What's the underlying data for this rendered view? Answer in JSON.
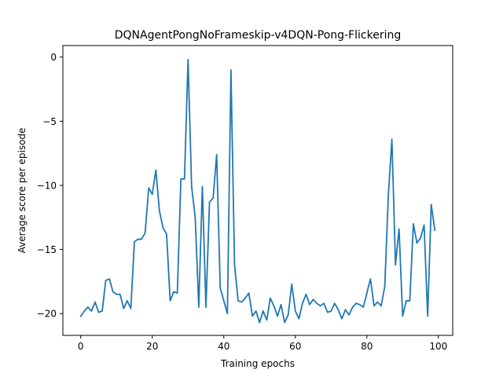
{
  "chart_data": {
    "type": "line",
    "title": "DQNAgentPongNoFrameskip-v4DQN-Pong-Flickering",
    "xlabel": "Training epochs",
    "ylabel": "Average score per episode",
    "xlim": [
      -5,
      104
    ],
    "ylim": [
      -21.7,
      0.9
    ],
    "xticks": [
      0,
      20,
      40,
      60,
      80,
      100
    ],
    "yticks": [
      0,
      -5,
      -10,
      -15,
      -20
    ],
    "xtick_labels": [
      "0",
      "20",
      "40",
      "60",
      "80",
      "100"
    ],
    "ytick_labels": [
      "0",
      "−5",
      "−10",
      "−15",
      "−20"
    ],
    "grid": false,
    "series": [
      {
        "color": "#1f77b4",
        "x": [
          0,
          1,
          2,
          3,
          4,
          5,
          6,
          7,
          8,
          9,
          10,
          11,
          12,
          13,
          14,
          15,
          16,
          17,
          18,
          19,
          20,
          21,
          22,
          23,
          24,
          25,
          26,
          27,
          28,
          29,
          30,
          31,
          32,
          33,
          34,
          35,
          36,
          37,
          38,
          39,
          40,
          41,
          42,
          43,
          44,
          45,
          46,
          47,
          48,
          49,
          50,
          51,
          52,
          53,
          54,
          55,
          56,
          57,
          58,
          59,
          60,
          61,
          62,
          63,
          64,
          65,
          66,
          67,
          68,
          69,
          70,
          71,
          72,
          73,
          74,
          75,
          76,
          77,
          78,
          79,
          80,
          81,
          82,
          83,
          84,
          85,
          86,
          87,
          88,
          89,
          90,
          91,
          92,
          93,
          94,
          95,
          96,
          97,
          98,
          99
        ],
        "y": [
          -20.2,
          -19.8,
          -19.5,
          -19.8,
          -19.1,
          -19.9,
          -19.8,
          -17.4,
          -17.3,
          -18.3,
          -18.5,
          -18.5,
          -19.6,
          -19.0,
          -19.6,
          -14.4,
          -14.2,
          -14.2,
          -13.7,
          -10.2,
          -10.7,
          -8.8,
          -12.0,
          -13.3,
          -13.8,
          -19.0,
          -18.3,
          -18.4,
          -9.5,
          -9.5,
          -0.2,
          -10.1,
          -12.5,
          -19.5,
          -10.1,
          -19.5,
          -11.3,
          -11.0,
          -7.6,
          -18.0,
          -19.0,
          -20.0,
          -1.0,
          -16.2,
          -19.0,
          -19.1,
          -18.8,
          -18.4,
          -20.2,
          -19.8,
          -20.7,
          -19.8,
          -20.5,
          -18.8,
          -19.4,
          -20.2,
          -19.3,
          -20.7,
          -20.1,
          -17.7,
          -19.8,
          -20.4,
          -19.2,
          -18.5,
          -19.3,
          -18.9,
          -19.2,
          -19.4,
          -19.2,
          -19.9,
          -19.8,
          -19.2,
          -19.7,
          -20.4,
          -19.7,
          -20.1,
          -19.5,
          -19.2,
          -19.3,
          -19.5,
          -18.4,
          -17.3,
          -19.4,
          -19.1,
          -19.4,
          -17.9,
          -10.8,
          -6.4,
          -16.2,
          -13.4,
          -20.2,
          -19.0,
          -19.0,
          -13.0,
          -14.5,
          -14.1,
          -13.1,
          -20.2,
          -11.5,
          -13.5
        ]
      }
    ]
  }
}
